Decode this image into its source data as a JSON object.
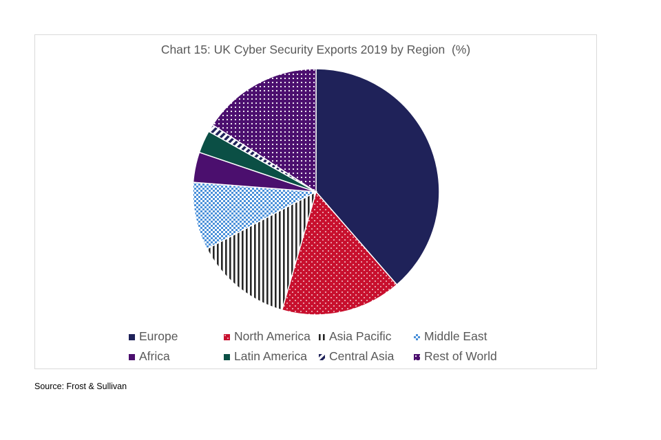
{
  "chart_data": {
    "type": "pie",
    "title": "Chart 15: UK Cyber Security Exports 2019 by Region  (%)",
    "categories": [
      "Europe",
      "North America",
      "Asia Pacific",
      "Middle East",
      "Africa",
      "Latin America",
      "Central Asia",
      "Rest of World"
    ],
    "values": [
      39,
      16,
      13,
      9,
      4,
      3,
      1,
      16
    ],
    "colors": [
      "#1f2259",
      "#c8102e",
      "#262626",
      "#4a90d9",
      "#4b0f6e",
      "#0b4f45",
      "#1f2259",
      "#4b0f6e"
    ],
    "patterns": [
      "solid",
      "dots",
      "vertical-stripes",
      "checker",
      "solid",
      "solid",
      "diagonal-stripes",
      "dotted-grid"
    ],
    "legend_position": "bottom",
    "start_angle_deg": 0,
    "direction": "clockwise"
  },
  "source": "Source: Frost & Sullivan"
}
